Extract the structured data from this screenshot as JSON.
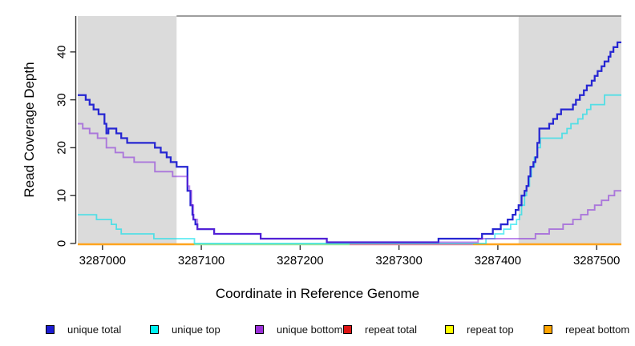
{
  "axes": {
    "x_title": "Coordinate in Reference Genome",
    "y_title": "Read Coverage Depth",
    "x_ticks": [
      3287000,
      3287100,
      3287200,
      3287300,
      3287400,
      3287500
    ],
    "y_ticks": [
      0,
      10,
      20,
      30,
      40
    ]
  },
  "chart_data": {
    "type": "line",
    "style": "step",
    "xlabel": "Coordinate in Reference Genome",
    "ylabel": "Read Coverage Depth",
    "xlim": [
      3286975,
      3287525
    ],
    "ylim": [
      0,
      47.5
    ],
    "grid": false,
    "legend_position": "bottom",
    "highlight_regions": [
      {
        "x0": 3286975,
        "x1": 3287075,
        "color": "#DBDBDB"
      },
      {
        "x0": 3287421,
        "x1": 3287525,
        "color": "#DBDBDB"
      }
    ],
    "series": [
      {
        "name": "unique total",
        "color": "#2626D2",
        "points": [
          [
            3286975,
            31
          ],
          [
            3286983,
            30
          ],
          [
            3286987,
            29
          ],
          [
            3286991,
            28
          ],
          [
            3286996,
            27
          ],
          [
            3287002,
            25
          ],
          [
            3287004,
            23
          ],
          [
            3287006,
            24
          ],
          [
            3287014,
            23
          ],
          [
            3287019,
            22
          ],
          [
            3287025,
            21
          ],
          [
            3287053,
            20
          ],
          [
            3287059,
            19
          ],
          [
            3287065,
            18
          ],
          [
            3287069,
            17
          ],
          [
            3287075,
            16
          ],
          [
            3287086,
            11
          ],
          [
            3287089,
            8
          ],
          [
            3287091,
            6
          ],
          [
            3287092,
            5
          ],
          [
            3287094,
            4
          ],
          [
            3287096,
            3
          ],
          [
            3287113,
            2
          ],
          [
            3287160,
            1
          ],
          [
            3287227,
            0
          ],
          [
            3287340,
            1
          ],
          [
            3287384,
            2
          ],
          [
            3287395,
            3
          ],
          [
            3287403,
            4
          ],
          [
            3287410,
            5
          ],
          [
            3287415,
            6
          ],
          [
            3287418,
            7
          ],
          [
            3287421,
            8
          ],
          [
            3287424,
            10
          ],
          [
            3287427,
            11
          ],
          [
            3287429,
            12
          ],
          [
            3287431,
            14
          ],
          [
            3287433,
            16
          ],
          [
            3287436,
            17
          ],
          [
            3287438,
            18
          ],
          [
            3287440,
            21
          ],
          [
            3287442,
            24
          ],
          [
            3287452,
            25
          ],
          [
            3287456,
            26
          ],
          [
            3287460,
            27
          ],
          [
            3287464,
            28
          ],
          [
            3287476,
            29
          ],
          [
            3287479,
            30
          ],
          [
            3287483,
            31
          ],
          [
            3287487,
            32
          ],
          [
            3287490,
            33
          ],
          [
            3287495,
            34
          ],
          [
            3287498,
            35
          ],
          [
            3287501,
            36
          ],
          [
            3287505,
            37
          ],
          [
            3287508,
            38
          ],
          [
            3287512,
            39
          ],
          [
            3287514,
            40
          ],
          [
            3287517,
            41
          ],
          [
            3287521,
            42
          ],
          [
            3287525,
            42
          ]
        ]
      },
      {
        "name": "unique top",
        "color": "#54E2EE",
        "points": [
          [
            3286975,
            6
          ],
          [
            3286994,
            5
          ],
          [
            3287009,
            4
          ],
          [
            3287014,
            3
          ],
          [
            3287019,
            2
          ],
          [
            3287052,
            1
          ],
          [
            3287093,
            0
          ],
          [
            3287388,
            1
          ],
          [
            3287397,
            2
          ],
          [
            3287406,
            3
          ],
          [
            3287413,
            4
          ],
          [
            3287419,
            5
          ],
          [
            3287422,
            6
          ],
          [
            3287424,
            8
          ],
          [
            3287427,
            10
          ],
          [
            3287429,
            12
          ],
          [
            3287432,
            14
          ],
          [
            3287434,
            16
          ],
          [
            3287437,
            18
          ],
          [
            3287440,
            20
          ],
          [
            3287443,
            22
          ],
          [
            3287465,
            23
          ],
          [
            3287470,
            24
          ],
          [
            3287474,
            25
          ],
          [
            3287481,
            26
          ],
          [
            3287486,
            27
          ],
          [
            3287490,
            28
          ],
          [
            3287494,
            29
          ],
          [
            3287508,
            31
          ],
          [
            3287525,
            31
          ]
        ]
      },
      {
        "name": "unique bottom",
        "color": "#9B30D9",
        "points": [
          [
            3286975,
            25
          ],
          [
            3286980,
            24
          ],
          [
            3286987,
            23
          ],
          [
            3286995,
            22
          ],
          [
            3287004,
            20
          ],
          [
            3287013,
            19
          ],
          [
            3287021,
            18
          ],
          [
            3287032,
            17
          ],
          [
            3287053,
            15
          ],
          [
            3287071,
            14
          ],
          [
            3287086,
            12
          ],
          [
            3287088,
            11
          ],
          [
            3287090,
            8
          ],
          [
            3287092,
            5
          ],
          [
            3287096,
            3
          ],
          [
            3287113,
            2
          ],
          [
            3287160,
            1
          ],
          [
            3287227,
            0
          ],
          [
            3287380,
            1
          ],
          [
            3287438,
            2
          ],
          [
            3287452,
            3
          ],
          [
            3287466,
            4
          ],
          [
            3287476,
            5
          ],
          [
            3287484,
            6
          ],
          [
            3287491,
            7
          ],
          [
            3287498,
            8
          ],
          [
            3287505,
            9
          ],
          [
            3287512,
            10
          ],
          [
            3287518,
            11
          ],
          [
            3287525,
            11
          ]
        ]
      },
      {
        "name": "repeat total",
        "color": "#DC1414",
        "points": [
          [
            3286975,
            0
          ],
          [
            3287525,
            0
          ]
        ]
      },
      {
        "name": "repeat top",
        "color": "#FFFF00",
        "points": [
          [
            3286975,
            0
          ],
          [
            3287525,
            0
          ]
        ]
      },
      {
        "name": "repeat bottom",
        "color": "#FFA400",
        "points": [
          [
            3286975,
            0
          ],
          [
            3287525,
            0
          ]
        ]
      }
    ],
    "baseline_segments": [
      {
        "x0": 3286975,
        "x1": 3287093,
        "color": "#FFA41E"
      },
      {
        "x0": 3287093,
        "x1": 3287250,
        "color": "#9CE39C"
      },
      {
        "x0": 3287250,
        "x1": 3287375,
        "color": "#E2849B"
      },
      {
        "x0": 3287375,
        "x1": 3287525,
        "color": "#FFA41E"
      }
    ]
  },
  "legend": {
    "items": [
      {
        "label": "unique total",
        "color": "#1C1CD2"
      },
      {
        "label": "unique top",
        "color": "#00F2F2"
      },
      {
        "label": "unique bottom",
        "color": "#9B30D9"
      },
      {
        "label": "repeat total",
        "color": "#DC1414"
      },
      {
        "label": "repeat top",
        "color": "#FFFF00"
      },
      {
        "label": "repeat bottom",
        "color": "#FFA400"
      }
    ]
  }
}
